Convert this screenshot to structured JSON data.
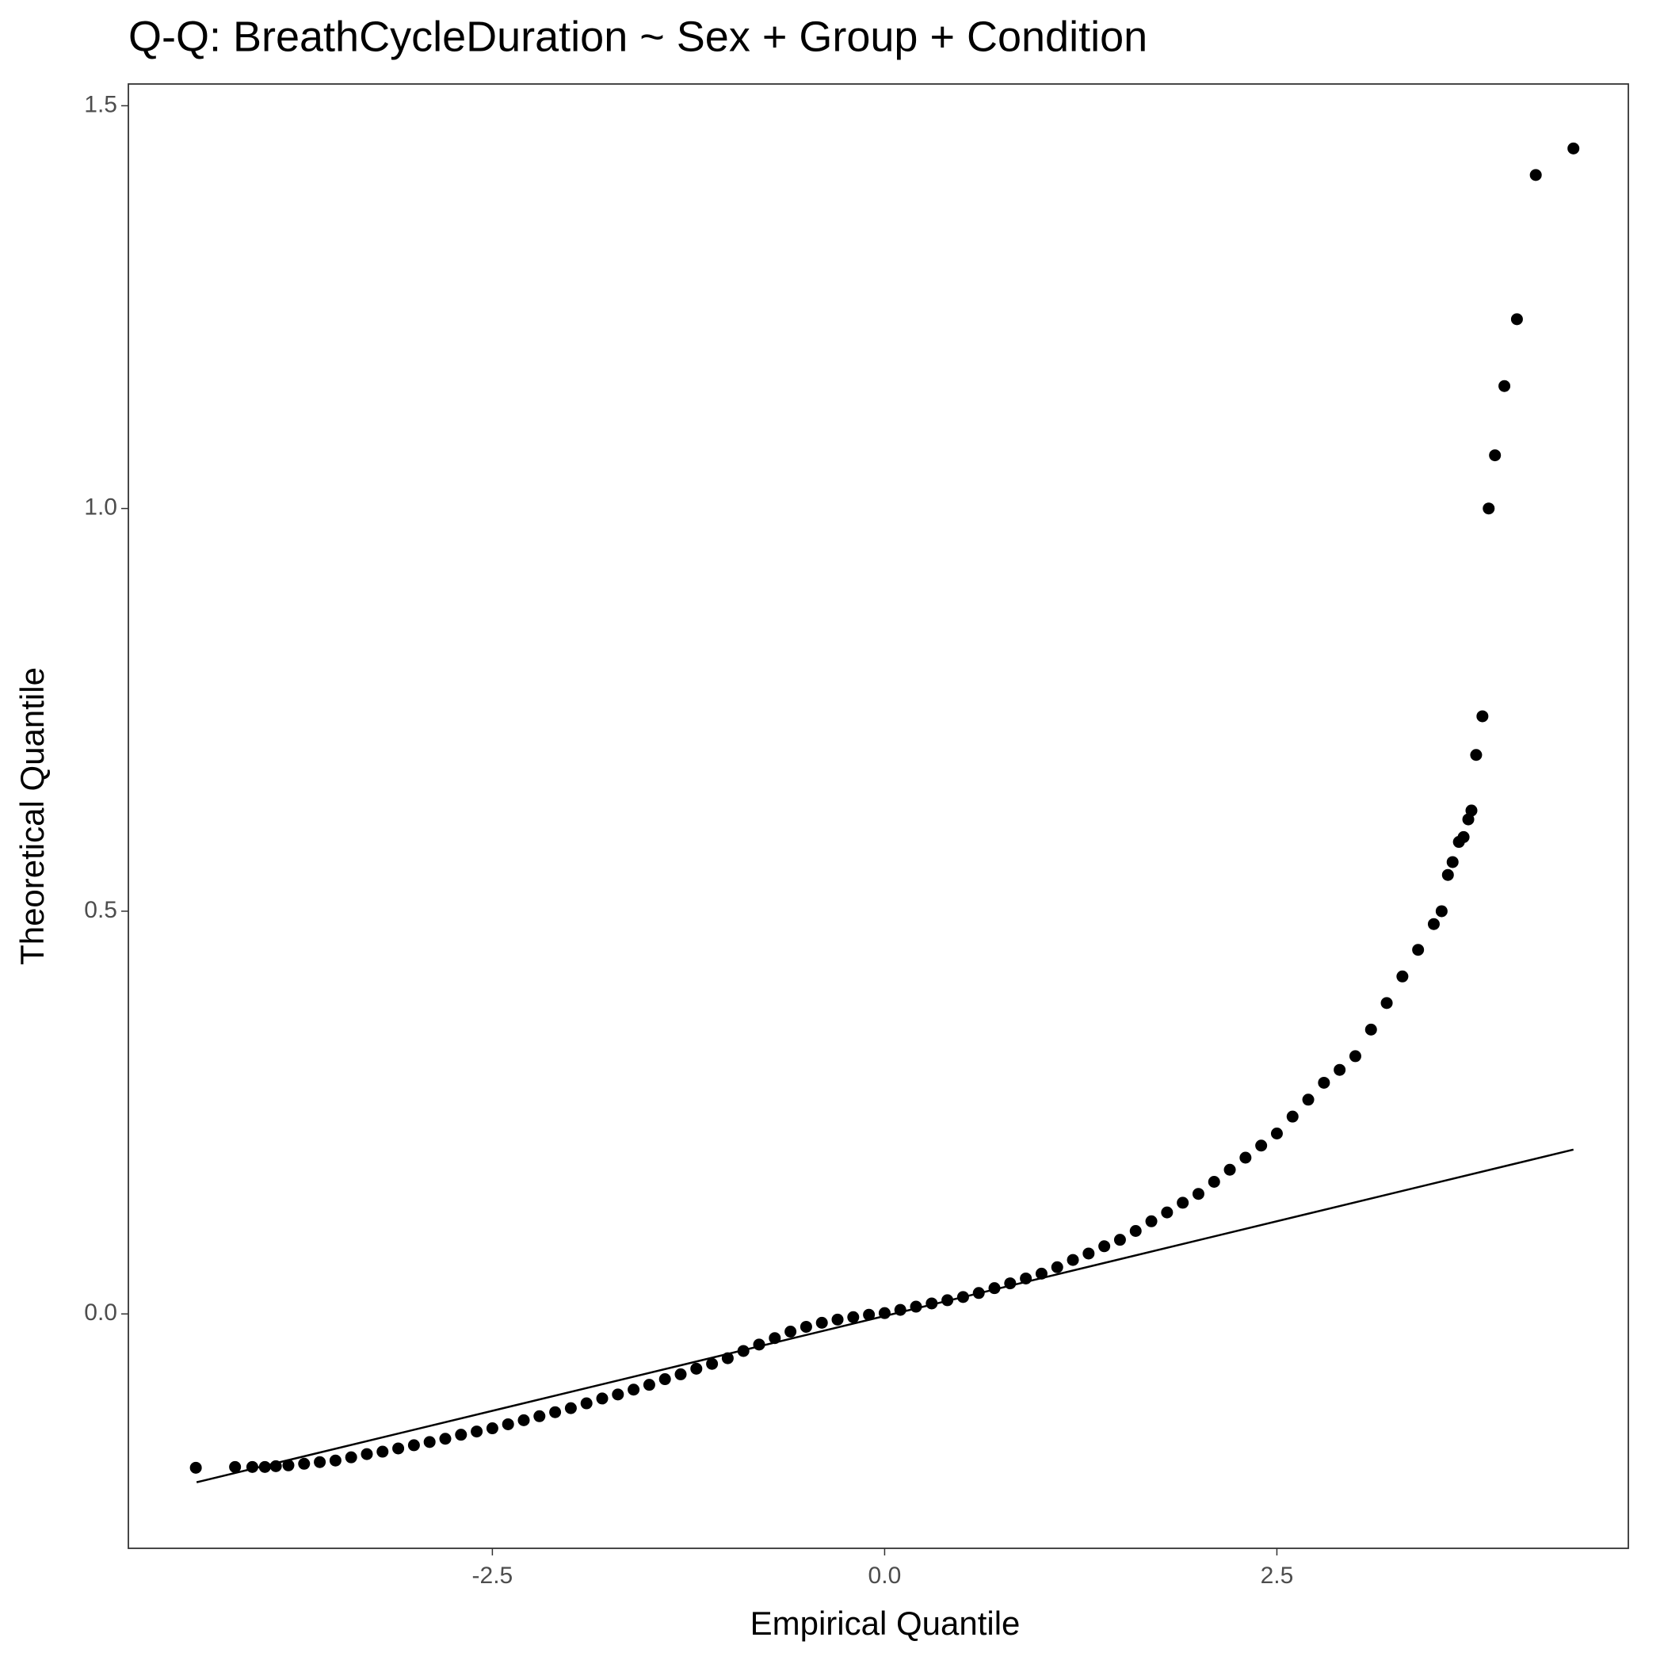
{
  "chart_data": {
    "type": "scatter",
    "title": "Q-Q: BreathCycleDuration ~ Sex + Group + Condition",
    "x_label": "Empirical Quantile",
    "y_label": "Theoretical Quantile",
    "color": "#000000",
    "grid": false,
    "xlim": [
      -4.82,
      4.74
    ],
    "ylim": [
      -0.291,
      1.527
    ],
    "xticks": [
      -2.5,
      {
        "value": 0,
        "label": "0.0"
      },
      2.5
    ],
    "yticks": [
      {
        "value": 0,
        "label": "0.0"
      },
      0.5,
      {
        "value": 1,
        "label": "1.0"
      },
      1.5
    ],
    "x": [
      -4.39,
      -4.14,
      -4.03,
      -3.95,
      -3.88,
      -3.8,
      -3.7,
      -3.6,
      -3.5,
      -3.4,
      -3.3,
      -3.2,
      -3.1,
      -3.0,
      -2.9,
      -2.8,
      -2.7,
      -2.6,
      -2.5,
      -2.4,
      -2.3,
      -2.2,
      -2.1,
      -2.0,
      -1.9,
      -1.8,
      -1.7,
      -1.6,
      -1.5,
      -1.4,
      -1.3,
      -1.2,
      -1.1,
      -1.0,
      -0.9,
      -0.8,
      -0.7,
      -0.6,
      -0.5,
      -0.4,
      -0.3,
      -0.2,
      -0.1,
      0.0,
      0.1,
      0.2,
      0.3,
      0.4,
      0.5,
      0.6,
      0.7,
      0.8,
      0.9,
      1.0,
      1.1,
      1.2,
      1.3,
      1.4,
      1.5,
      1.6,
      1.7,
      1.8,
      1.9,
      2.0,
      2.1,
      2.2,
      2.3,
      2.4,
      2.5,
      2.6,
      2.7,
      2.8,
      2.9,
      3.0,
      3.1,
      3.2,
      3.3,
      3.4,
      3.5,
      3.55,
      3.59,
      3.62,
      3.66,
      3.69,
      3.72,
      3.74,
      3.77,
      3.81,
      3.85,
      3.89,
      3.95,
      4.03,
      4.15,
      4.39
    ],
    "values": [
      -0.191,
      -0.19,
      -0.19,
      -0.19,
      -0.189,
      -0.188,
      -0.186,
      -0.184,
      -0.182,
      -0.178,
      -0.174,
      -0.171,
      -0.167,
      -0.163,
      -0.159,
      -0.155,
      -0.15,
      -0.146,
      -0.142,
      -0.137,
      -0.132,
      -0.127,
      -0.122,
      -0.117,
      -0.111,
      -0.105,
      -0.1,
      -0.094,
      -0.088,
      -0.081,
      -0.075,
      -0.068,
      -0.062,
      -0.055,
      -0.046,
      -0.038,
      -0.03,
      -0.022,
      -0.016,
      -0.011,
      -0.007,
      -0.004,
      -0.001,
      0.001,
      0.005,
      0.009,
      0.013,
      0.017,
      0.021,
      0.026,
      0.032,
      0.038,
      0.044,
      0.05,
      0.058,
      0.067,
      0.075,
      0.084,
      0.092,
      0.103,
      0.115,
      0.126,
      0.138,
      0.149,
      0.164,
      0.179,
      0.194,
      0.209,
      0.224,
      0.245,
      0.266,
      0.287,
      0.303,
      0.32,
      0.353,
      0.386,
      0.419,
      0.452,
      0.484,
      0.5,
      0.545,
      0.561,
      0.586,
      0.592,
      0.614,
      0.625,
      0.694,
      0.742,
      1.0,
      1.066,
      1.152,
      1.235,
      1.414,
      1.447
    ],
    "reference_line": {
      "x": [
        -4.385,
        4.39
      ],
      "values": [
        -0.209,
        0.204
      ]
    }
  }
}
